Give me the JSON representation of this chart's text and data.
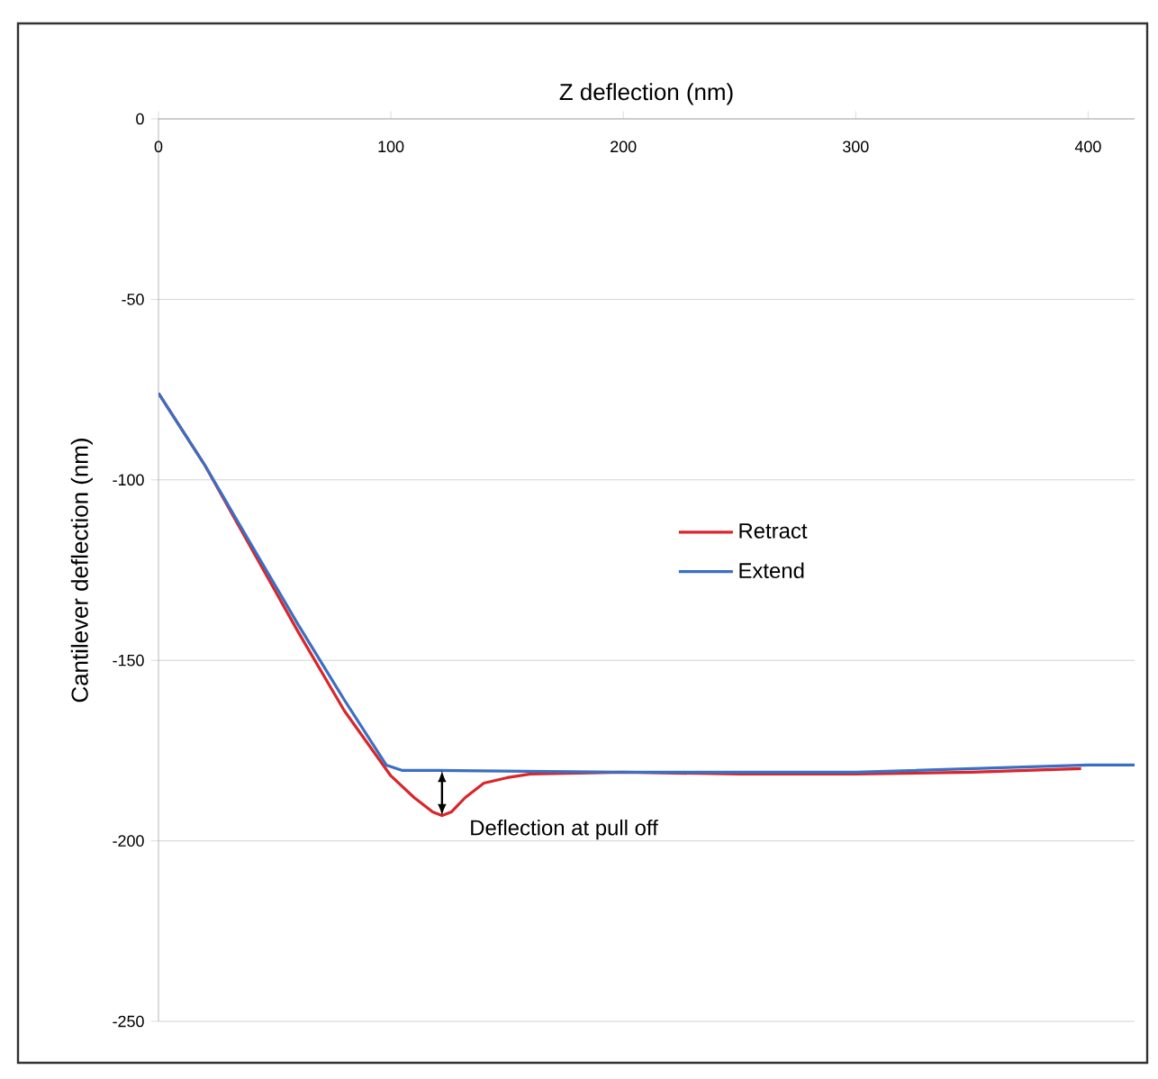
{
  "chart_data": {
    "type": "line",
    "xlabel": "Z deflection (nm)",
    "ylabel": "Cantilever deflection (nm)",
    "xlim": [
      0,
      420
    ],
    "ylim": [
      -250,
      0
    ],
    "xticks": [
      0,
      100,
      200,
      300,
      400
    ],
    "yticks": [
      -250,
      -200,
      -150,
      -100,
      -50,
      0
    ],
    "grid": "y",
    "legend": "center",
    "marker": "none",
    "line_style": "solid",
    "series": [
      {
        "name": "Retract",
        "color": "#d9262b",
        "x": [
          0,
          20,
          40,
          60,
          80,
          100,
          110,
          118,
          122,
          126,
          132,
          140,
          150,
          160,
          200,
          250,
          300,
          350,
          397
        ],
        "values": [
          -76,
          -96,
          -119,
          -142,
          -164,
          -182,
          -188,
          -192,
          -193,
          -192,
          -188,
          -184,
          -182.5,
          -181.5,
          -181,
          -181.5,
          -181.5,
          -181,
          -180
        ]
      },
      {
        "name": "Extend",
        "color": "#3a6fc4",
        "x": [
          0,
          20,
          40,
          60,
          80,
          98,
          105,
          120,
          200,
          300,
          350,
          400,
          420
        ],
        "values": [
          -76,
          -96,
          -118,
          -140,
          -161,
          -179,
          -180.5,
          -180.5,
          -181,
          -181,
          -180,
          -179,
          -179
        ]
      }
    ],
    "annotations": [
      {
        "text": "Deflection at pull off",
        "x": 122,
        "y": -193
      }
    ]
  }
}
